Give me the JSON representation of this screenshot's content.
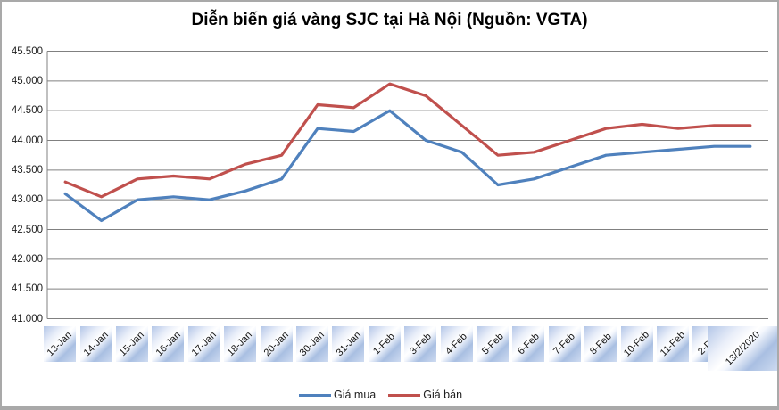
{
  "chart_data": {
    "type": "line",
    "title": "Diễn biến giá vàng SJC tại Hà Nội (Nguồn: VGTA)",
    "categories": [
      "13-Jan",
      "14-Jan",
      "15-Jan",
      "16-Jan",
      "17-Jan",
      "18-Jan",
      "20-Jan",
      "30-Jan",
      "31-Jan",
      "1-Feb",
      "3-Feb",
      "4-Feb",
      "5-Feb",
      "6-Feb",
      "7-Feb",
      "8-Feb",
      "10-Feb",
      "11-Feb",
      "2-Dec",
      "13/2/2020"
    ],
    "series": [
      {
        "name": "Giá mua",
        "color": "#4F81BD",
        "values": [
          43.1,
          42.65,
          43.0,
          43.05,
          43.0,
          43.15,
          43.35,
          44.2,
          44.15,
          44.5,
          44.0,
          43.8,
          43.25,
          43.35,
          43.55,
          43.75,
          43.8,
          43.85,
          43.9,
          43.9
        ]
      },
      {
        "name": "Giá bán",
        "color": "#C0504D",
        "values": [
          43.3,
          43.05,
          43.35,
          43.4,
          43.35,
          43.6,
          43.75,
          44.6,
          44.55,
          44.95,
          44.75,
          44.25,
          43.75,
          43.8,
          44.0,
          44.2,
          44.27,
          44.2,
          44.25,
          44.25
        ]
      }
    ],
    "y_tick_labels": [
      "45.500",
      "45.000",
      "44.500",
      "44.000",
      "43.500",
      "43.000",
      "42.500",
      "42.000",
      "41.500",
      "41.000"
    ],
    "ylim": [
      41.0,
      45.5
    ],
    "y_step": 0.5,
    "grid": true,
    "gridline_color": "#808080",
    "legend_position": "bottom"
  }
}
